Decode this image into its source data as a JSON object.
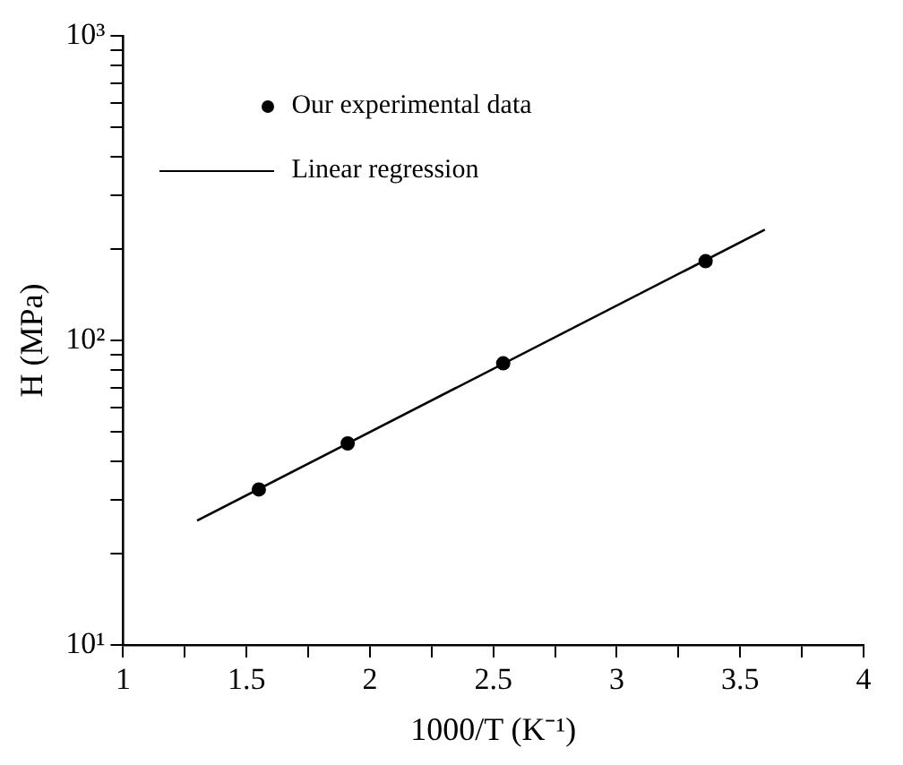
{
  "chart_data": {
    "type": "scatter",
    "xlabel": "1000/T (K⁻¹)",
    "ylabel": "H (MPa)",
    "series": [
      {
        "name": "Our experimental data",
        "type": "scatter",
        "color": "#000000",
        "marker": "circle",
        "x": [
          1.55,
          1.91,
          2.54,
          3.36
        ],
        "values": [
          32.4,
          45.9,
          84.1,
          182
        ]
      },
      {
        "name": "Linear regression",
        "type": "line",
        "color": "#000000",
        "marker": "none",
        "line_style": "solid",
        "x": [
          1.3,
          3.6
        ],
        "values": [
          25.6,
          231
        ]
      }
    ],
    "log": "y",
    "xlim": [
      1,
      4
    ],
    "ylim": [
      10,
      1000
    ],
    "xticks": [
      1,
      {
        "value": 1.25,
        "label": null
      },
      1.5,
      {
        "value": 1.75,
        "label": null
      },
      2,
      {
        "value": 2.25,
        "label": null
      },
      2.5,
      {
        "value": 2.75,
        "label": null
      },
      3,
      {
        "value": 3.25,
        "label": null
      },
      3.5,
      {
        "value": 3.75,
        "label": null
      },
      4
    ],
    "yticks": [
      {
        "value": 10,
        "label": "10¹"
      },
      {
        "value": 20,
        "label": null
      },
      {
        "value": 30,
        "label": null
      },
      {
        "value": 40,
        "label": null
      },
      {
        "value": 50,
        "label": null
      },
      {
        "value": 60,
        "label": null
      },
      {
        "value": 70,
        "label": null
      },
      {
        "value": 80,
        "label": null
      },
      {
        "value": 90,
        "label": null
      },
      {
        "value": 100,
        "label": "10²"
      },
      {
        "value": 200,
        "label": null
      },
      {
        "value": 300,
        "label": null
      },
      {
        "value": 400,
        "label": null
      },
      {
        "value": 500,
        "label": null
      },
      {
        "value": 600,
        "label": null
      },
      {
        "value": 700,
        "label": null
      },
      {
        "value": 800,
        "label": null
      },
      {
        "value": 900,
        "label": null
      },
      {
        "value": 1000,
        "label": "10³"
      }
    ],
    "grid": false,
    "legend": "top left"
  }
}
